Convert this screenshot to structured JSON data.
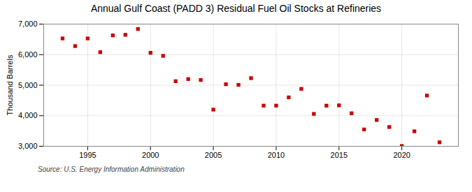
{
  "chart_data": {
    "type": "scatter",
    "title": "Annual Gulf Coast (PADD 3) Residual Fuel Oil Stocks at Refineries",
    "ylabel": "Thousand Barrels",
    "annotations": [
      "Source: U.S. Energy Information Administration"
    ],
    "x": [
      1993,
      1994,
      1995,
      1996,
      1997,
      1998,
      1999,
      2000,
      2001,
      2002,
      2003,
      2004,
      2005,
      2006,
      2007,
      2008,
      2009,
      2010,
      2011,
      2012,
      2013,
      2014,
      2015,
      2016,
      2017,
      2018,
      2019,
      2020,
      2021,
      2022,
      2023
    ],
    "values": [
      6530,
      6280,
      6530,
      6080,
      6630,
      6650,
      6840,
      6060,
      5960,
      5130,
      5200,
      5170,
      4200,
      5030,
      5010,
      5230,
      4330,
      4330,
      4600,
      4880,
      4060,
      4330,
      4340,
      4080,
      3550,
      3860,
      3630,
      3010,
      3490,
      4660,
      3130
    ],
    "color": "#cc0000",
    "marker": "square",
    "xlim": [
      1991.5,
      2024.5
    ],
    "xticks": [
      1995,
      2000,
      2005,
      2010,
      2015,
      2020
    ],
    "ylim": [
      3000,
      7000
    ],
    "yticks": [
      {
        "value": 3000,
        "label": "3,000"
      },
      {
        "value": 4000,
        "label": "4,000"
      },
      {
        "value": 5000,
        "label": "5,000"
      },
      {
        "value": 6000,
        "label": "6,000"
      },
      {
        "value": 7000,
        "label": "7,000"
      }
    ],
    "grid": true
  }
}
